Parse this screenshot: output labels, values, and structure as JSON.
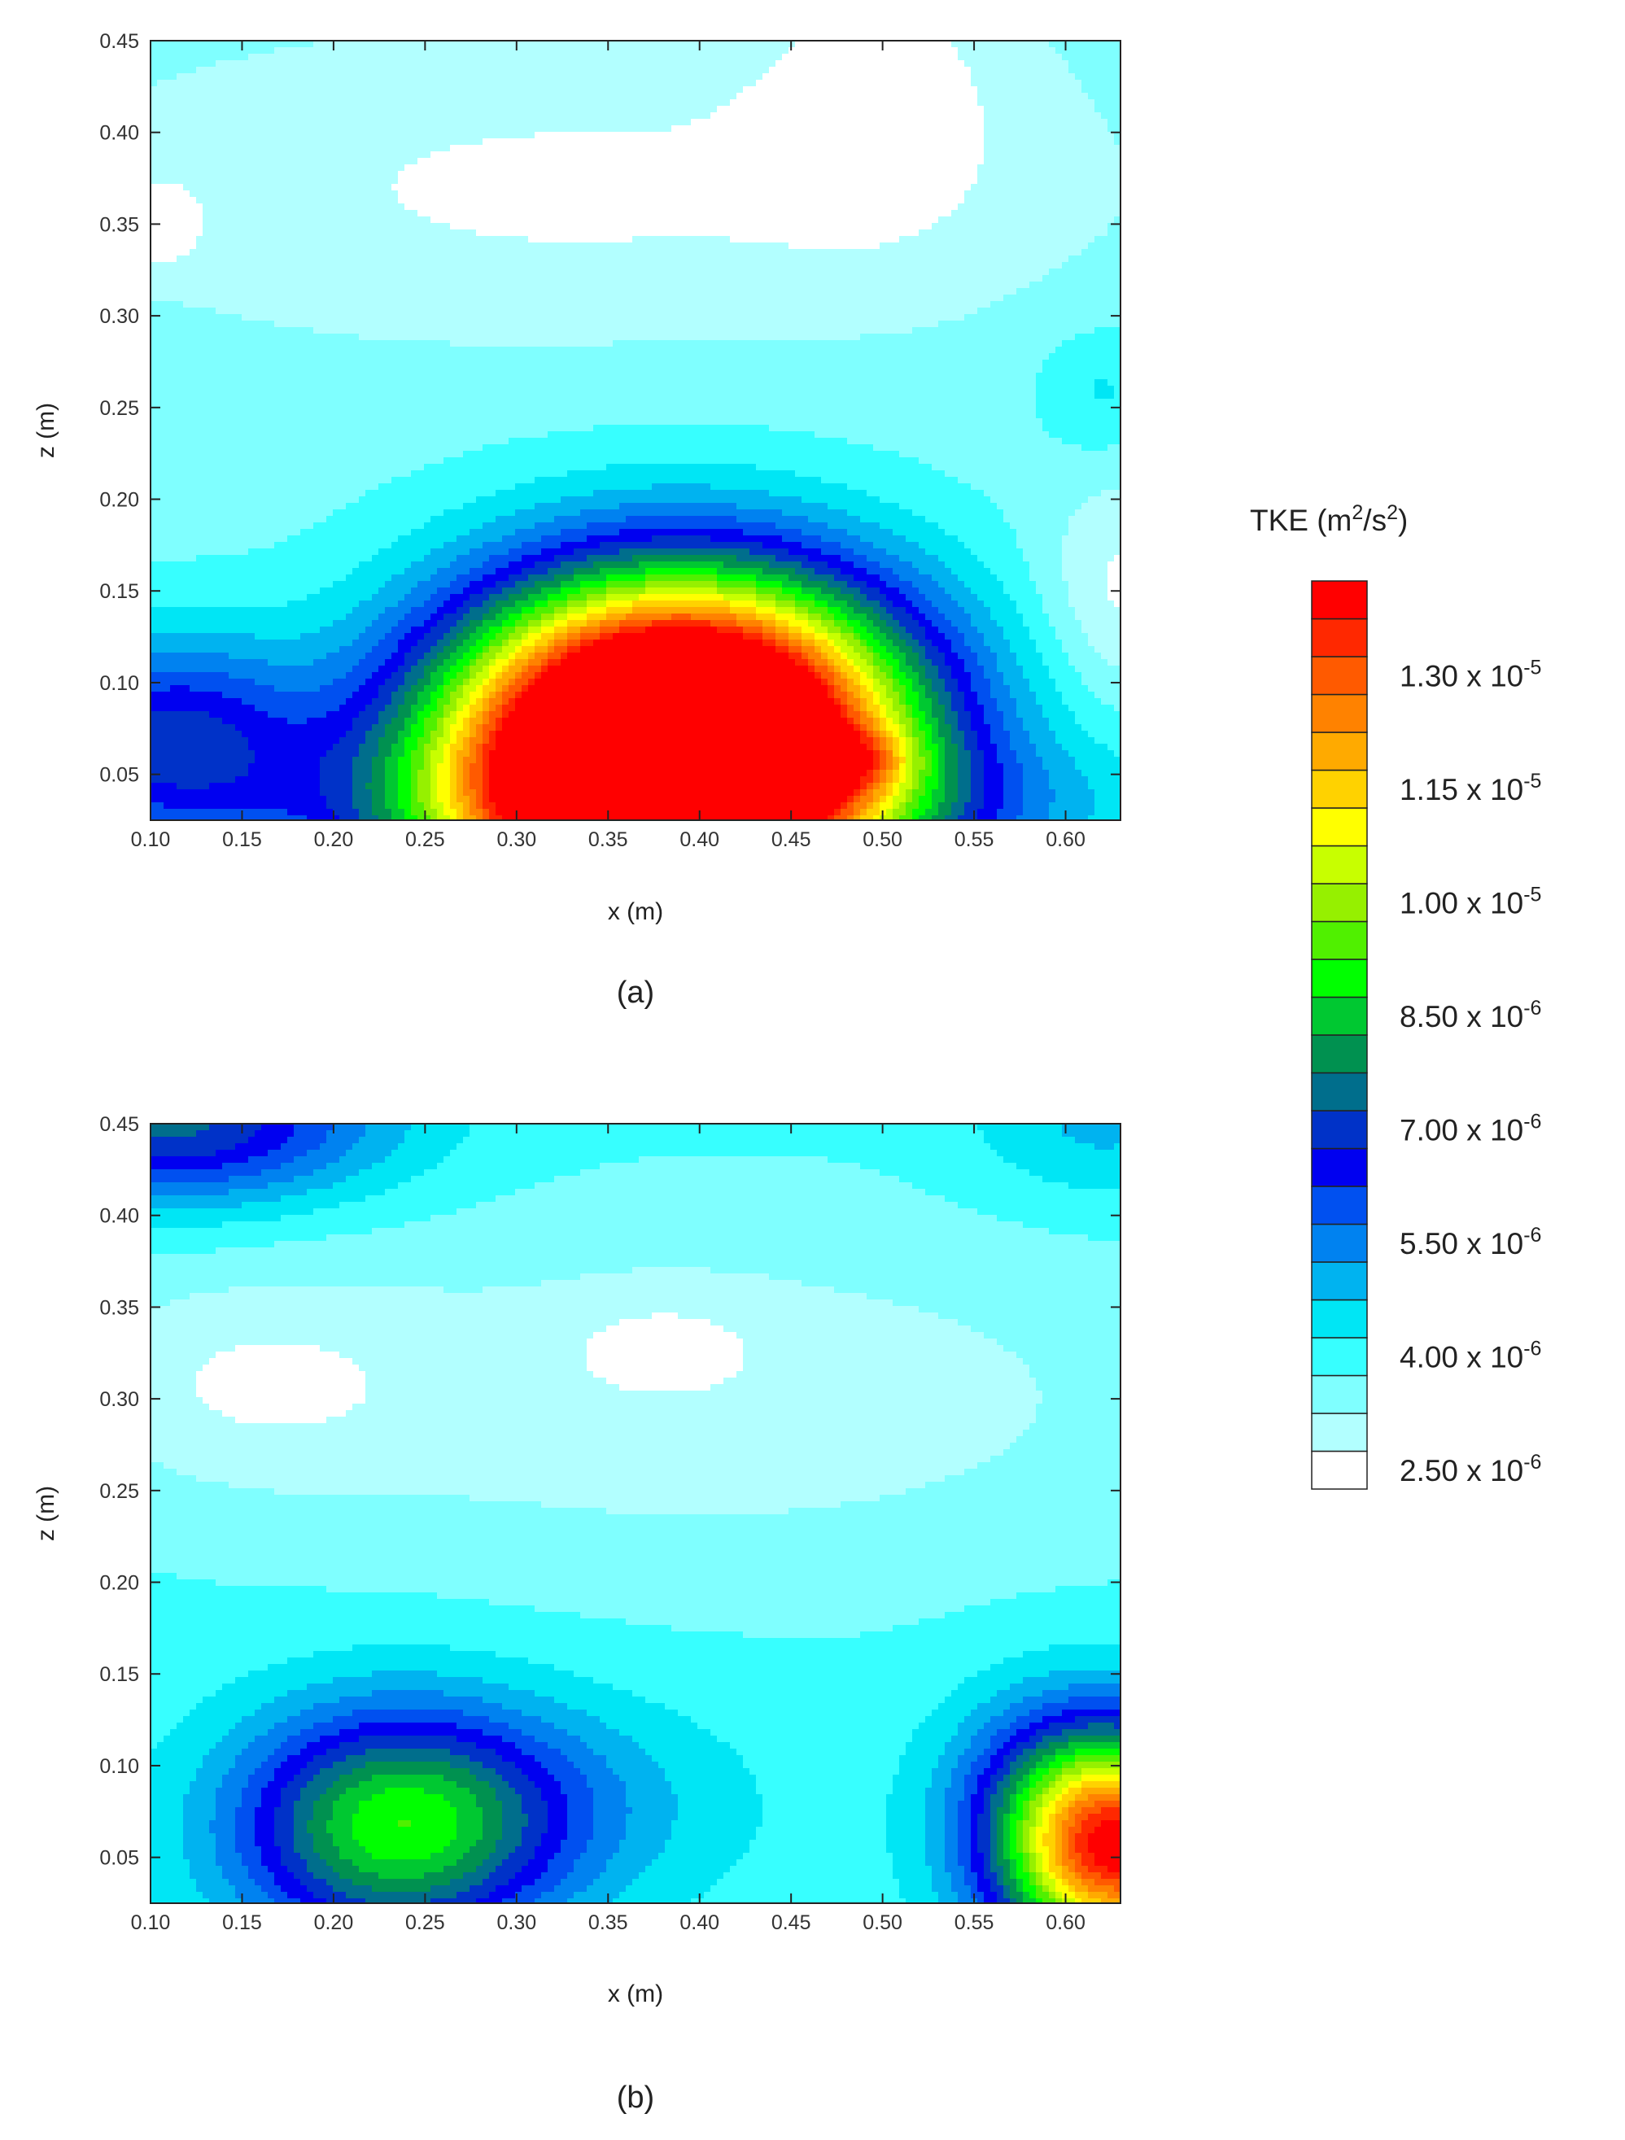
{
  "chart_data": {
    "type": "heatmap",
    "colorbar": {
      "title": "TKE (m²/s²)",
      "title_main": "TKE (m",
      "title_sup1": "2",
      "title_mid": "/s",
      "title_sup2": "2",
      "title_end": ")",
      "levels_e6": [
        2.5,
        3.0,
        3.5,
        4.0,
        4.5,
        5.0,
        5.5,
        6.0,
        6.5,
        7.0,
        7.5,
        8.0,
        8.5,
        9.0,
        9.5,
        10.0,
        10.5,
        11.0,
        11.5,
        12.0,
        12.5,
        13.0,
        13.5,
        14.0
      ],
      "colors": [
        "#ffffff",
        "#b2ffff",
        "#7fffff",
        "#37ffff",
        "#00e6f5",
        "#00b3f0",
        "#0082f0",
        "#0050f0",
        "#0000f0",
        "#0032c8",
        "#006e8c",
        "#009150",
        "#00c831",
        "#00ff00",
        "#50f000",
        "#96f000",
        "#c8ff00",
        "#ffff00",
        "#ffd200",
        "#ffaa00",
        "#ff8200",
        "#ff5a00",
        "#ff2800",
        "#ff0000"
      ],
      "labels": [
        {
          "value_e6": 13.0,
          "mant": "1.30 x 10",
          "exp": "-5"
        },
        {
          "value_e6": 11.5,
          "mant": "1.15 x 10",
          "exp": "-5"
        },
        {
          "value_e6": 10.0,
          "mant": "1.00 x 10",
          "exp": "-5"
        },
        {
          "value_e6": 8.5,
          "mant": "8.50 x 10",
          "exp": "-6"
        },
        {
          "value_e6": 7.0,
          "mant": "7.00 x 10",
          "exp": "-6"
        },
        {
          "value_e6": 5.5,
          "mant": "5.50 x 10",
          "exp": "-6"
        },
        {
          "value_e6": 4.0,
          "mant": "4.00 x 10",
          "exp": "-6"
        },
        {
          "value_e6": 2.5,
          "mant": "2.50 x 10",
          "exp": "-6"
        }
      ]
    },
    "panels": [
      {
        "label": "(a)",
        "xlabel": "x (m)",
        "ylabel": "z (m)",
        "xlim": [
          0.1,
          0.63
        ],
        "ylim": [
          0.025,
          0.45
        ],
        "xticks": [
          "0.10",
          "0.15",
          "0.20",
          "0.25",
          "0.30",
          "0.35",
          "0.40",
          "0.45",
          "0.50",
          "0.55",
          "0.60"
        ],
        "yticks": [
          "0.05",
          "0.10",
          "0.15",
          "0.20",
          "0.25",
          "0.30",
          "0.35",
          "0.40",
          "0.45"
        ],
        "background_tke_e6": 3.8,
        "features": [
          {
            "x": 0.37,
            "z": 0.053,
            "peak_e6": 13.5,
            "sx": 0.085,
            "sz": 0.065
          },
          {
            "x": 0.42,
            "z": 0.085,
            "peak_e6": 5.6,
            "sx": 0.08,
            "sz": 0.055
          },
          {
            "x": 0.49,
            "z": 0.058,
            "peak_e6": 1.5,
            "sx": 0.02,
            "sz": 0.012
          },
          {
            "x": 0.11,
            "z": 0.07,
            "peak_e6": 3.2,
            "sx": 0.055,
            "sz": 0.04
          },
          {
            "x": 0.4,
            "z": 0.03,
            "peak_e6": 1.5,
            "sx": 0.2,
            "sz": 0.03
          },
          {
            "x": 0.62,
            "z": 0.26,
            "peak_e6": 0.8,
            "sx": 0.025,
            "sz": 0.025
          },
          {
            "x": 0.33,
            "z": 0.37,
            "peak_e6": -0.9,
            "sx": 0.2,
            "sz": 0.06
          },
          {
            "x": 0.5,
            "z": 0.43,
            "peak_e6": -0.8,
            "sx": 0.05,
            "sz": 0.06
          },
          {
            "x": 0.105,
            "z": 0.35,
            "peak_e6": -1.0,
            "sx": 0.015,
            "sz": 0.015
          },
          {
            "x": 0.63,
            "z": 0.15,
            "peak_e6": -1.0,
            "sx": 0.03,
            "sz": 0.04
          }
        ]
      },
      {
        "label": "(b)",
        "xlabel": "x (m)",
        "ylabel": "z (m)",
        "xlim": [
          0.1,
          0.63
        ],
        "ylim": [
          0.025,
          0.45
        ],
        "xticks": [
          "0.10",
          "0.15",
          "0.20",
          "0.25",
          "0.30",
          "0.35",
          "0.40",
          "0.45",
          "0.50",
          "0.55",
          "0.60"
        ],
        "yticks": [
          "0.05",
          "0.10",
          "0.15",
          "0.20",
          "0.25",
          "0.30",
          "0.35",
          "0.40",
          "0.45"
        ],
        "background_tke_e6": 4.2,
        "features": [
          {
            "x": 0.232,
            "z": 0.065,
            "peak_e6": 4.5,
            "sx": 0.06,
            "sz": 0.045
          },
          {
            "x": 0.3,
            "z": 0.08,
            "peak_e6": 1.2,
            "sx": 0.08,
            "sz": 0.04
          },
          {
            "x": 0.63,
            "z": 0.055,
            "peak_e6": 9.8,
            "sx": 0.045,
            "sz": 0.042
          },
          {
            "x": 0.59,
            "z": 0.09,
            "peak_e6": 1.2,
            "sx": 0.04,
            "sz": 0.04
          },
          {
            "x": 0.11,
            "z": 0.45,
            "peak_e6": 3.5,
            "sx": 0.08,
            "sz": 0.03
          },
          {
            "x": 0.62,
            "z": 0.45,
            "peak_e6": 1.0,
            "sx": 0.05,
            "sz": 0.03
          },
          {
            "x": 0.4,
            "z": 0.3,
            "peak_e6": -1.0,
            "sx": 0.22,
            "sz": 0.075
          },
          {
            "x": 0.15,
            "z": 0.31,
            "peak_e6": -0.8,
            "sx": 0.07,
            "sz": 0.04
          },
          {
            "x": 0.38,
            "z": 0.33,
            "peak_e6": -0.5,
            "sx": 0.04,
            "sz": 0.02
          }
        ]
      }
    ]
  }
}
